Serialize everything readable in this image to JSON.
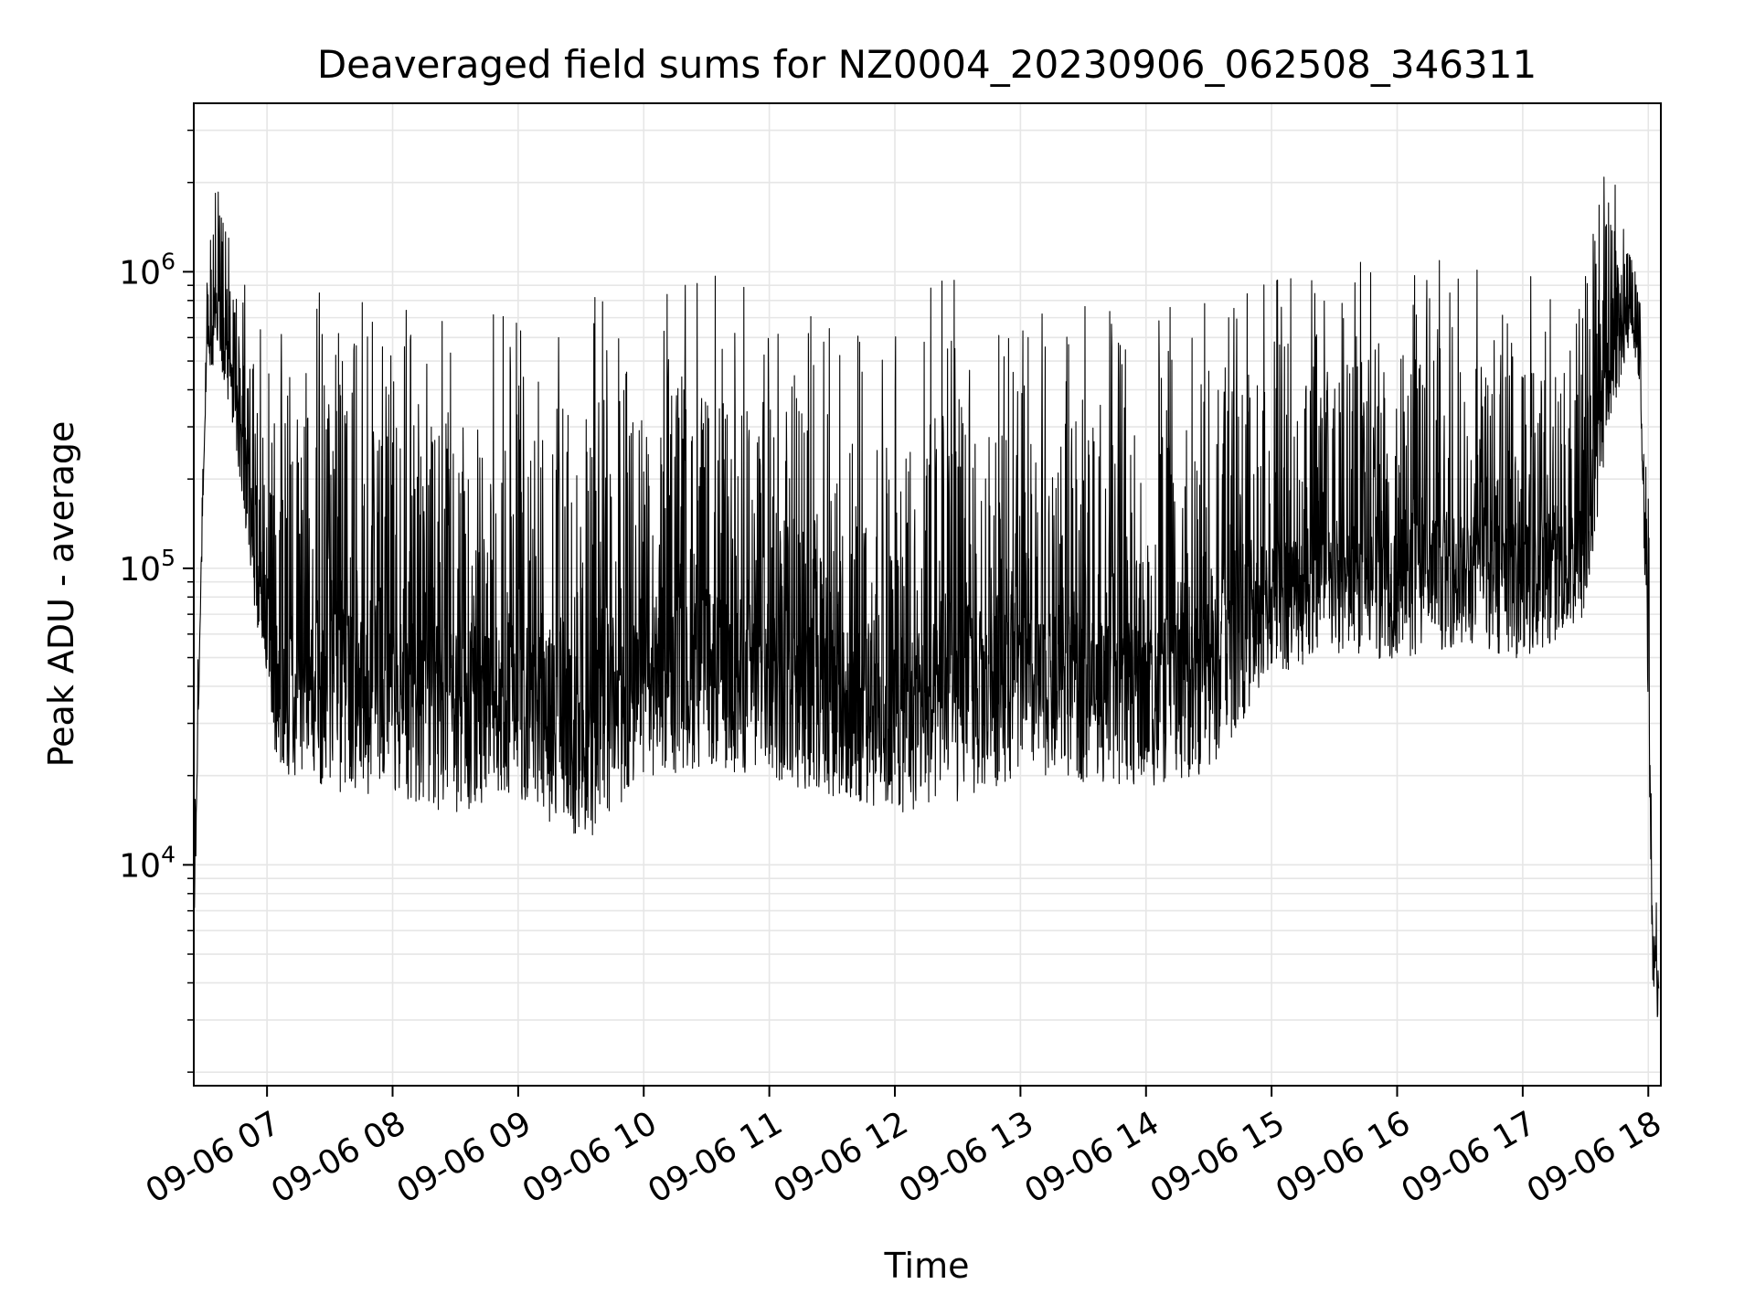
{
  "chart_data": {
    "type": "line",
    "title": "Deaveraged field sums for NZ0004_20230906_062508_346311",
    "xlabel": "Time",
    "ylabel": "Peak ADU - average",
    "yscale": "log",
    "ylim": [
      1800,
      3700000
    ],
    "xlim": [
      "2023-09-06 06:25",
      "2023-09-06 18:06"
    ],
    "grid": true,
    "line_color": "#000000",
    "grid_color": "#e6e6e6",
    "x_ticks": [
      {
        "at": "2023-09-06 07:00",
        "label": "09-06 07"
      },
      {
        "at": "2023-09-06 08:00",
        "label": "09-06 08"
      },
      {
        "at": "2023-09-06 09:00",
        "label": "09-06 09"
      },
      {
        "at": "2023-09-06 10:00",
        "label": "09-06 10"
      },
      {
        "at": "2023-09-06 11:00",
        "label": "09-06 11"
      },
      {
        "at": "2023-09-06 12:00",
        "label": "09-06 12"
      },
      {
        "at": "2023-09-06 13:00",
        "label": "09-06 13"
      },
      {
        "at": "2023-09-06 14:00",
        "label": "09-06 14"
      },
      {
        "at": "2023-09-06 15:00",
        "label": "09-06 15"
      },
      {
        "at": "2023-09-06 16:00",
        "label": "09-06 16"
      },
      {
        "at": "2023-09-06 17:00",
        "label": "09-06 17"
      },
      {
        "at": "2023-09-06 18:00",
        "label": "09-06 18"
      }
    ],
    "y_ticks": [
      {
        "value": 10000,
        "base": "10",
        "exp": "4"
      },
      {
        "value": 100000,
        "base": "10",
        "exp": "5"
      },
      {
        "value": 1000000,
        "base": "10",
        "exp": "6"
      }
    ],
    "series": [
      {
        "envelope": [
          {
            "t": "2023-09-06 06:25",
            "low": 4000,
            "high": 16000
          },
          {
            "t": "2023-09-06 06:28",
            "low": 60000,
            "high": 90000
          },
          {
            "t": "2023-09-06 06:31",
            "low": 400000,
            "high": 1000000
          },
          {
            "t": "2023-09-06 06:36",
            "low": 500000,
            "high": 2300000
          },
          {
            "t": "2023-09-06 06:45",
            "low": 250000,
            "high": 1200000
          },
          {
            "t": "2023-09-06 06:55",
            "low": 60000,
            "high": 900000
          },
          {
            "t": "2023-09-06 07:05",
            "low": 18000,
            "high": 800000
          },
          {
            "t": "2023-09-06 07:30",
            "low": 15000,
            "high": 1000000
          },
          {
            "t": "2023-09-06 08:00",
            "low": 15000,
            "high": 900000
          },
          {
            "t": "2023-09-06 08:30",
            "low": 13000,
            "high": 900000
          },
          {
            "t": "2023-09-06 09:00",
            "low": 15000,
            "high": 900000
          },
          {
            "t": "2023-09-06 09:30",
            "low": 10000,
            "high": 800000
          },
          {
            "t": "2023-09-06 10:00",
            "low": 17000,
            "high": 900000
          },
          {
            "t": "2023-09-06 10:30",
            "low": 19000,
            "high": 1000000
          },
          {
            "t": "2023-09-06 11:00",
            "low": 17000,
            "high": 1000000
          },
          {
            "t": "2023-09-06 11:30",
            "low": 15000,
            "high": 800000
          },
          {
            "t": "2023-09-06 12:00",
            "low": 13000,
            "high": 700000
          },
          {
            "t": "2023-09-06 12:30",
            "low": 14000,
            "high": 1200000
          },
          {
            "t": "2023-09-06 13:00",
            "low": 18000,
            "high": 700000
          },
          {
            "t": "2023-09-06 13:30",
            "low": 17000,
            "high": 800000
          },
          {
            "t": "2023-09-06 14:00",
            "low": 16000,
            "high": 700000
          },
          {
            "t": "2023-09-06 14:30",
            "low": 18000,
            "high": 900000
          },
          {
            "t": "2023-09-06 15:00",
            "low": 40000,
            "high": 1000000
          },
          {
            "t": "2023-09-06 15:30",
            "low": 45000,
            "high": 1100000
          },
          {
            "t": "2023-09-06 16:00",
            "low": 45000,
            "high": 1200000
          },
          {
            "t": "2023-09-06 16:30",
            "low": 50000,
            "high": 1100000
          },
          {
            "t": "2023-09-06 17:00",
            "low": 45000,
            "high": 1000000
          },
          {
            "t": "2023-09-06 17:30",
            "low": 60000,
            "high": 1100000
          },
          {
            "t": "2023-09-06 17:40",
            "low": 250000,
            "high": 2800000
          },
          {
            "t": "2023-09-06 17:52",
            "low": 600000,
            "high": 1500000
          },
          {
            "t": "2023-09-06 17:56",
            "low": 400000,
            "high": 1000000
          },
          {
            "t": "2023-09-06 18:00",
            "low": 30000,
            "high": 200000
          },
          {
            "t": "2023-09-06 18:02",
            "low": 4000,
            "high": 14000
          },
          {
            "t": "2023-09-06 18:05",
            "low": 2600,
            "high": 11000
          }
        ]
      }
    ]
  }
}
